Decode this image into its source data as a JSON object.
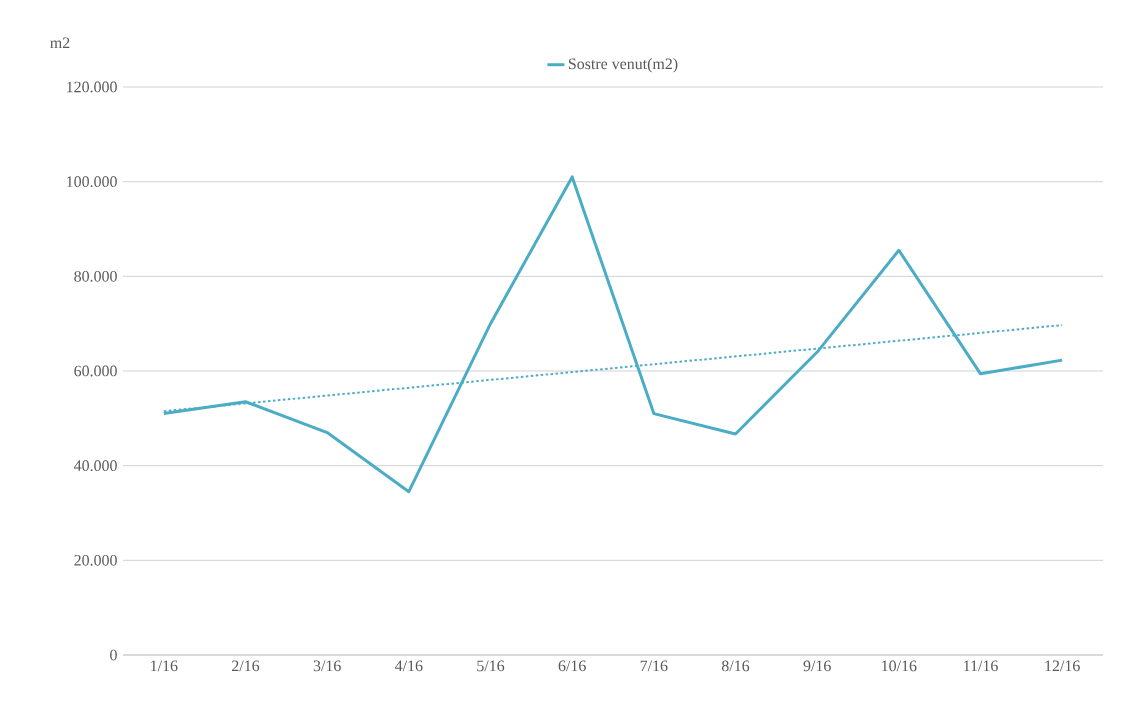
{
  "chart_data": {
    "type": "line",
    "ylabel": "m2",
    "categories": [
      "1/16",
      "2/16",
      "3/16",
      "4/16",
      "5/16",
      "6/16",
      "7/16",
      "8/16",
      "9/16",
      "10/16",
      "11/16",
      "12/16"
    ],
    "series": [
      {
        "name": "Sostre venut(m2)",
        "color": "#4bacc6",
        "values": [
          51000,
          53500,
          47000,
          34500,
          70000,
          101000,
          51000,
          46700,
          64000,
          85500,
          59400,
          62300
        ]
      },
      {
        "type": "line",
        "color": "#4bacc6",
        "line_style": "dotted",
        "x": [
          "1/16",
          "12/16"
        ],
        "values": [
          51500,
          69700
        ]
      }
    ],
    "ylim": [
      0,
      120000
    ],
    "yticks": [
      {
        "value": 0,
        "label": "0"
      },
      {
        "value": 20000,
        "label": "20.000"
      },
      {
        "value": 40000,
        "label": "40.000"
      },
      {
        "value": 60000,
        "label": "60.000"
      },
      {
        "value": 80000,
        "label": "80.000"
      },
      {
        "value": 100000,
        "label": "100.000"
      },
      {
        "value": 120000,
        "label": "120.000"
      }
    ],
    "grid": "y",
    "legend": "top",
    "marker": "none",
    "line_style": "solid"
  }
}
